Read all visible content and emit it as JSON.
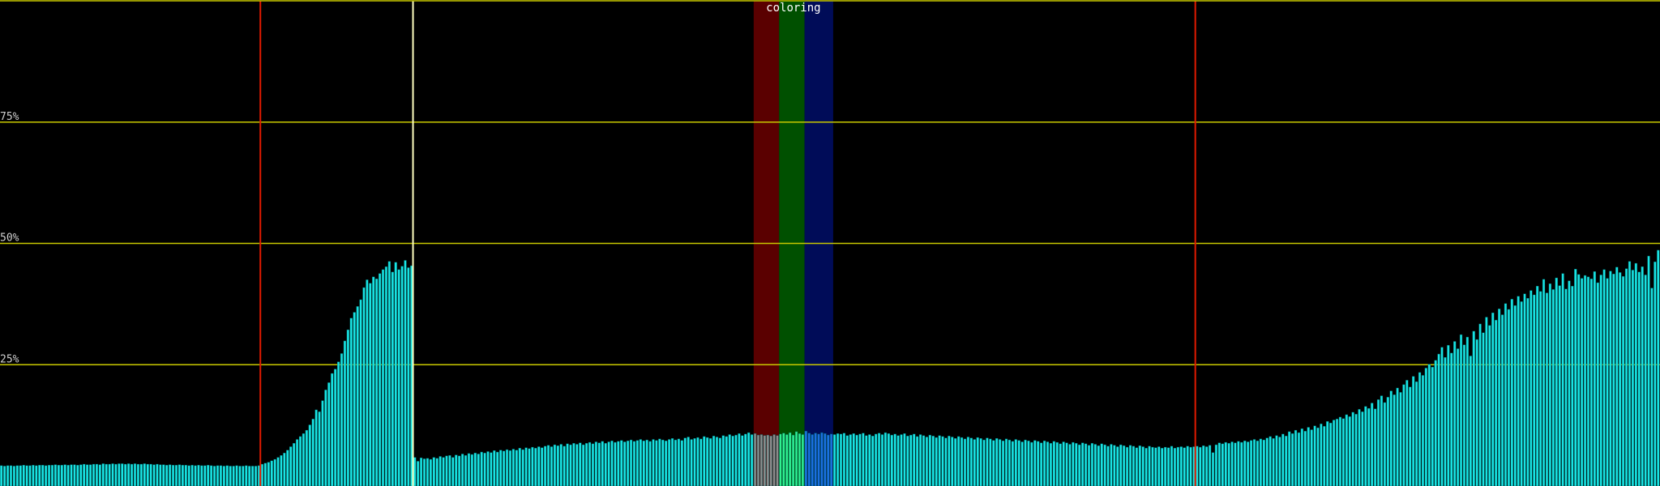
{
  "chart_data": {
    "type": "bar",
    "title": "coloring",
    "color": "#19e3e3",
    "ylim": [
      0,
      100
    ],
    "yticks": [
      {
        "value": 25,
        "label": "25%"
      },
      {
        "value": 50,
        "label": "50%"
      },
      {
        "value": 75,
        "label": "75%"
      }
    ],
    "grid": true,
    "grid_color": "#c8c800",
    "markers": [
      {
        "index": 82,
        "color": "#e01a00"
      },
      {
        "index": 130,
        "color": "#ffffc0"
      },
      {
        "index": 376,
        "color": "#e01a00"
      }
    ],
    "highlights": [
      {
        "start": 237,
        "end": 244,
        "band_color": "#5a0000",
        "bar_color": "#8c8c8c"
      },
      {
        "start": 245,
        "end": 252,
        "band_color": "#005000",
        "bar_color": "#30f090"
      },
      {
        "start": 253,
        "end": 261,
        "band_color": "#000c58",
        "bar_color": "#1a70e0"
      }
    ],
    "values": [
      4.2,
      4.1,
      4.2,
      4.2,
      4.1,
      4.2,
      4.2,
      4.3,
      4.2,
      4.2,
      4.3,
      4.2,
      4.3,
      4.3,
      4.2,
      4.3,
      4.3,
      4.4,
      4.3,
      4.3,
      4.4,
      4.3,
      4.4,
      4.4,
      4.3,
      4.4,
      4.5,
      4.4,
      4.4,
      4.5,
      4.5,
      4.4,
      4.6,
      4.5,
      4.5,
      4.6,
      4.5,
      4.6,
      4.6,
      4.5,
      4.6,
      4.5,
      4.6,
      4.5,
      4.5,
      4.6,
      4.5,
      4.5,
      4.4,
      4.5,
      4.4,
      4.4,
      4.3,
      4.4,
      4.3,
      4.3,
      4.4,
      4.3,
      4.3,
      4.2,
      4.3,
      4.2,
      4.3,
      4.2,
      4.2,
      4.3,
      4.2,
      4.1,
      4.2,
      4.2,
      4.1,
      4.2,
      4.1,
      4.1,
      4.2,
      4.1,
      4.1,
      4.2,
      4.1,
      4.1,
      4.1,
      4.2,
      4.5,
      4.7,
      4.9,
      5.2,
      5.5,
      5.9,
      6.3,
      6.8,
      7.4,
      8.1,
      8.8,
      9.6,
      10.2,
      10.8,
      11.5,
      12.6,
      13.8,
      15.7,
      15.3,
      17.6,
      19.8,
      21.3,
      23.2,
      24.1,
      25.6,
      27.3,
      29.9,
      32.2,
      34.6,
      35.8,
      37.0,
      38.4,
      40.9,
      42.5,
      41.8,
      43.1,
      42.7,
      43.8,
      44.6,
      45.2,
      46.3,
      44.1,
      46.1,
      44.6,
      45.3,
      46.5,
      45.0,
      45.4,
      5.9,
      5.1,
      5.8,
      5.6,
      5.7,
      5.5,
      5.9,
      5.7,
      6.1,
      5.9,
      6.2,
      6.3,
      5.9,
      6.4,
      6.2,
      6.6,
      6.3,
      6.7,
      6.5,
      6.8,
      6.6,
      7.0,
      6.8,
      7.1,
      6.9,
      7.3,
      7.0,
      7.4,
      7.2,
      7.5,
      7.3,
      7.6,
      7.4,
      7.8,
      7.5,
      7.9,
      7.7,
      8.0,
      7.8,
      8.1,
      7.9,
      8.2,
      8.4,
      8.1,
      8.5,
      8.3,
      8.6,
      8.2,
      8.7,
      8.5,
      8.8,
      8.6,
      8.9,
      8.5,
      8.8,
      9.0,
      8.7,
      9.1,
      8.9,
      9.2,
      8.8,
      9.1,
      9.3,
      9.0,
      9.2,
      9.4,
      9.1,
      9.3,
      9.5,
      9.2,
      9.4,
      9.6,
      9.3,
      9.5,
      9.2,
      9.6,
      9.4,
      9.7,
      9.5,
      9.3,
      9.6,
      9.8,
      9.5,
      9.7,
      9.4,
      9.9,
      10.1,
      9.6,
      9.8,
      10.0,
      9.7,
      10.2,
      10.0,
      9.8,
      10.3,
      10.1,
      9.9,
      10.4,
      10.2,
      10.6,
      10.3,
      10.5,
      10.8,
      10.4,
      10.7,
      11.0,
      10.6,
      10.8,
      10.5,
      10.6,
      10.4,
      10.5,
      10.3,
      10.6,
      10.4,
      10.7,
      10.9,
      10.6,
      11.0,
      10.5,
      11.2,
      10.8,
      10.6,
      11.3,
      10.9,
      10.6,
      10.9,
      10.7,
      11.0,
      10.8,
      10.5,
      10.7,
      10.6,
      10.8,
      10.7,
      10.9,
      10.4,
      10.6,
      10.8,
      10.5,
      10.7,
      10.9,
      10.4,
      10.6,
      10.3,
      10.7,
      10.9,
      10.6,
      11.0,
      10.8,
      10.5,
      10.7,
      10.4,
      10.6,
      10.8,
      10.3,
      10.5,
      10.7,
      10.2,
      10.6,
      10.4,
      10.1,
      10.5,
      10.3,
      10.0,
      10.4,
      10.2,
      9.9,
      10.3,
      10.1,
      9.8,
      10.2,
      10.0,
      9.7,
      10.1,
      9.9,
      9.6,
      10.0,
      9.8,
      9.5,
      9.9,
      9.7,
      9.4,
      9.8,
      9.6,
      9.3,
      9.7,
      9.5,
      9.2,
      9.6,
      9.4,
      9.1,
      9.5,
      9.3,
      9.0,
      9.4,
      9.2,
      8.9,
      9.3,
      9.1,
      8.8,
      9.2,
      9.0,
      8.7,
      9.1,
      8.9,
      8.6,
      9.0,
      8.8,
      8.5,
      8.9,
      8.7,
      8.4,
      8.8,
      8.6,
      8.3,
      8.7,
      8.5,
      8.2,
      8.6,
      8.4,
      8.1,
      8.5,
      8.3,
      8.0,
      8.4,
      8.2,
      7.9,
      8.3,
      8.1,
      7.8,
      8.2,
      8.0,
      7.9,
      8.1,
      7.8,
      8.0,
      7.9,
      8.2,
      7.8,
      8.0,
      8.1,
      7.9,
      8.2,
      8.0,
      8.1,
      8.2,
      8.0,
      8.3,
      8.1,
      8.4,
      6.9,
      8.5,
      8.9,
      8.7,
      9.0,
      8.8,
      9.1,
      8.9,
      9.2,
      9.0,
      9.3,
      9.1,
      9.4,
      9.6,
      9.3,
      9.7,
      9.5,
      9.9,
      10.2,
      9.8,
      10.4,
      10.1,
      10.7,
      10.3,
      11.2,
      10.8,
      11.5,
      11.0,
      11.8,
      11.3,
      12.1,
      11.6,
      12.4,
      12.0,
      12.8,
      12.3,
      13.3,
      13.0,
      13.6,
      13.8,
      14.2,
      13.9,
      14.7,
      14.3,
      15.2,
      14.8,
      15.8,
      15.3,
      16.4,
      16.0,
      17.1,
      15.9,
      17.8,
      18.6,
      17.2,
      18.3,
      19.6,
      18.8,
      20.2,
      19.3,
      20.9,
      21.8,
      20.4,
      22.6,
      21.5,
      23.4,
      22.8,
      24.3,
      25.1,
      24.5,
      25.9,
      27.2,
      28.6,
      26.5,
      29.0,
      27.4,
      29.8,
      28.3,
      31.2,
      29.1,
      30.7,
      26.8,
      31.9,
      30.2,
      33.4,
      31.6,
      34.8,
      33.1,
      35.7,
      34.2,
      36.5,
      35.3,
      37.6,
      36.4,
      38.5,
      37.2,
      39.1,
      38.0,
      39.6,
      38.7,
      40.3,
      39.4,
      41.2,
      40.1,
      42.6,
      39.8,
      41.7,
      40.5,
      42.9,
      41.3,
      43.8,
      40.6,
      42.3,
      41.2,
      44.7,
      43.6,
      42.8,
      43.4,
      43.1,
      42.7,
      44.2,
      41.9,
      43.5,
      44.6,
      42.8,
      44.3,
      43.7,
      45.1,
      44.0,
      43.2,
      44.8,
      46.3,
      44.5,
      45.9,
      44.1,
      45.2,
      43.5,
      47.4,
      40.8,
      46.2,
      48.6
    ]
  }
}
